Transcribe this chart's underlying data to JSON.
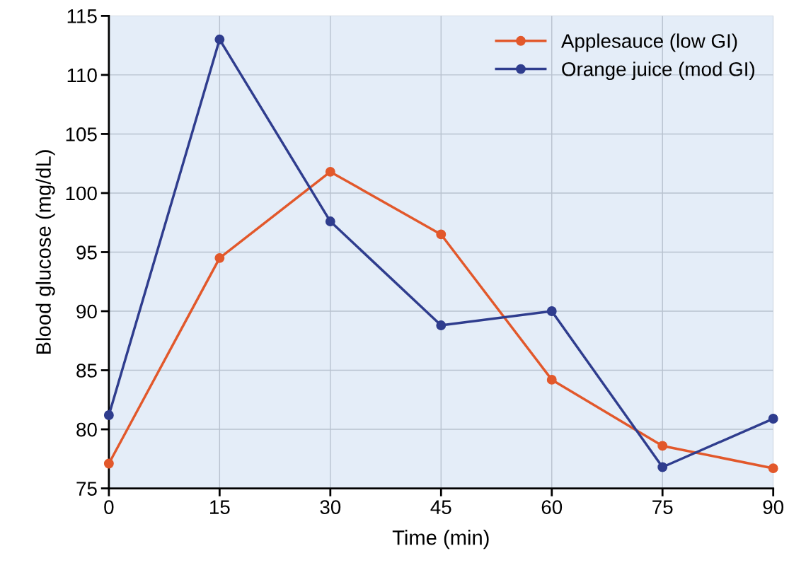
{
  "chart_data": {
    "type": "line",
    "xlabel": "Time (min)",
    "ylabel": "Blood glucose (mg/dL)",
    "x": [
      0,
      15,
      30,
      45,
      60,
      75,
      90
    ],
    "series": [
      {
        "name": "Applesauce (low GI)",
        "color": "#e2582b",
        "values": [
          77.1,
          94.5,
          101.8,
          96.5,
          84.2,
          78.6,
          76.7
        ]
      },
      {
        "name": "Orange juice (mod GI)",
        "color": "#2f3d8e",
        "values": [
          81.2,
          113.0,
          97.6,
          88.8,
          90.0,
          76.8,
          80.9
        ]
      }
    ],
    "xlim": [
      0,
      90
    ],
    "xticks": [
      0,
      15,
      30,
      45,
      60,
      75,
      90
    ],
    "ylim": [
      75,
      115
    ],
    "yticks": [
      75,
      80,
      85,
      90,
      95,
      100,
      105,
      110,
      115
    ],
    "grid": true,
    "legend": "top right",
    "marker": "circle",
    "line_style": "solid"
  }
}
